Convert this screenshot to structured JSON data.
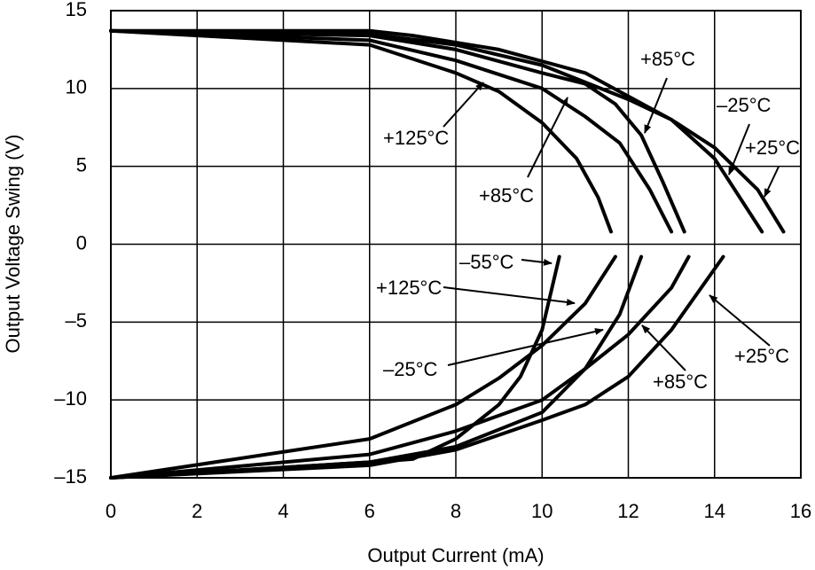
{
  "chart_data": {
    "type": "line",
    "xlabel": "Output Current (mA)",
    "ylabel": "Output Voltage Swing (V)",
    "xlim": [
      0,
      16
    ],
    "xticks": [
      0,
      2,
      4,
      6,
      8,
      10,
      12,
      14,
      16
    ],
    "ylim": [
      -15,
      15
    ],
    "yticks": [
      {
        "value": -15,
        "label": "–15"
      },
      {
        "value": -10,
        "label": "–10"
      },
      {
        "value": -5,
        "label": "–5"
      },
      0,
      5,
      10,
      15
    ],
    "grid": true,
    "color": "#000000",
    "series": [
      {
        "name": "+125°C",
        "x": [
          0,
          6,
          8,
          9,
          10,
          10.8,
          11.3,
          11.6
        ],
        "values": [
          13.7,
          12.8,
          11,
          9.8,
          7.8,
          5.5,
          3,
          0.8
        ]
      },
      {
        "name": "+85°C",
        "x": [
          0,
          6,
          8,
          10,
          11,
          11.8,
          12.5,
          13.0
        ],
        "values": [
          13.7,
          13.1,
          11.8,
          10,
          8.2,
          6.5,
          3.5,
          0.8
        ]
      },
      {
        "name": "+85°C",
        "x": [
          0,
          6,
          8,
          10,
          11,
          11.7,
          12.3,
          12.8,
          13.3
        ],
        "values": [
          13.7,
          13.4,
          12.5,
          11,
          10.3,
          9,
          7,
          4,
          0.8
        ]
      },
      {
        "name": "–25°C",
        "x": [
          0,
          6,
          8,
          10,
          12,
          13,
          14,
          15.1
        ],
        "values": [
          13.7,
          13.5,
          12.8,
          11.5,
          9.3,
          8,
          5.5,
          0.8
        ]
      },
      {
        "name": "+25°C",
        "x": [
          0,
          6,
          7,
          9,
          11,
          13,
          14,
          15,
          15.6
        ],
        "values": [
          13.7,
          13.7,
          13.4,
          12.5,
          11,
          8,
          6.2,
          3.5,
          0.8
        ]
      },
      {
        "name": "–55°C",
        "x": [
          0,
          6,
          7,
          8,
          9,
          9.5,
          10,
          10.4
        ],
        "values": [
          -15,
          -14,
          -13.8,
          -12.5,
          -10.3,
          -8.5,
          -5.5,
          -0.8
        ]
      },
      {
        "name": "+125°C",
        "x": [
          0,
          6,
          8,
          9,
          10,
          11,
          11.7
        ],
        "values": [
          -15,
          -12.5,
          -10.3,
          -8.6,
          -6.5,
          -3.8,
          -0.8
        ]
      },
      {
        "name": "–25°C",
        "x": [
          0,
          6,
          8,
          10,
          11,
          11.8,
          12.3
        ],
        "values": [
          -15,
          -14,
          -13,
          -10.8,
          -8,
          -4.5,
          -0.8
        ]
      },
      {
        "name": "+85°C",
        "x": [
          0,
          6,
          8,
          10,
          11,
          12,
          13,
          13.4
        ],
        "values": [
          -15,
          -13.5,
          -12,
          -10,
          -8,
          -5.8,
          -2.8,
          -0.8
        ]
      },
      {
        "name": "+25°C",
        "x": [
          0,
          6,
          8,
          10,
          11,
          12,
          13,
          14.2
        ],
        "values": [
          -15,
          -14.2,
          -13.2,
          -11.3,
          -10.3,
          -8.5,
          -5.5,
          -0.8
        ]
      }
    ]
  }
}
